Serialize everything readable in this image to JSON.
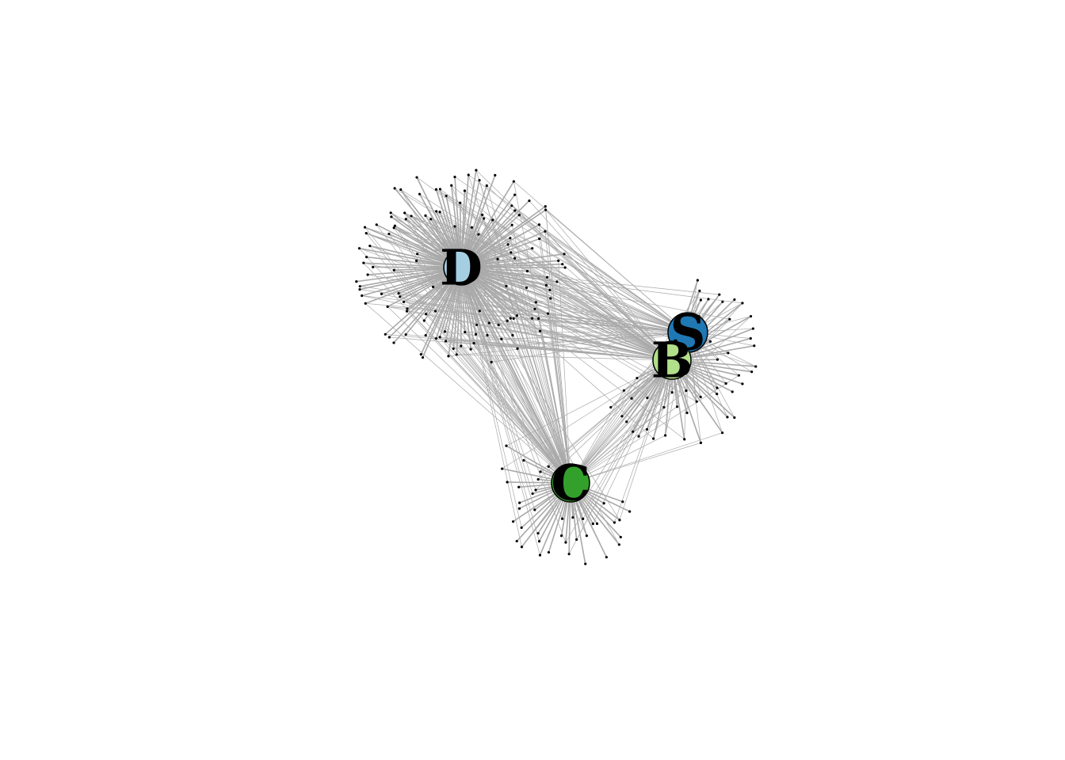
{
  "graph": {
    "type": "network",
    "hubs": [
      {
        "id": "D",
        "label": "D",
        "color": "#a6cee3",
        "leaf_count": 130
      },
      {
        "id": "B",
        "label": "B",
        "color": "#b2df8a",
        "leaf_count": 48
      },
      {
        "id": "S",
        "label": "S",
        "color": "#1f78b4",
        "leaf_count": 0
      },
      {
        "id": "C",
        "label": "C",
        "color": "#33a02c",
        "leaf_count": 40
      }
    ],
    "edge_color": "#a9a9a9",
    "leaf_color": "#000000"
  }
}
